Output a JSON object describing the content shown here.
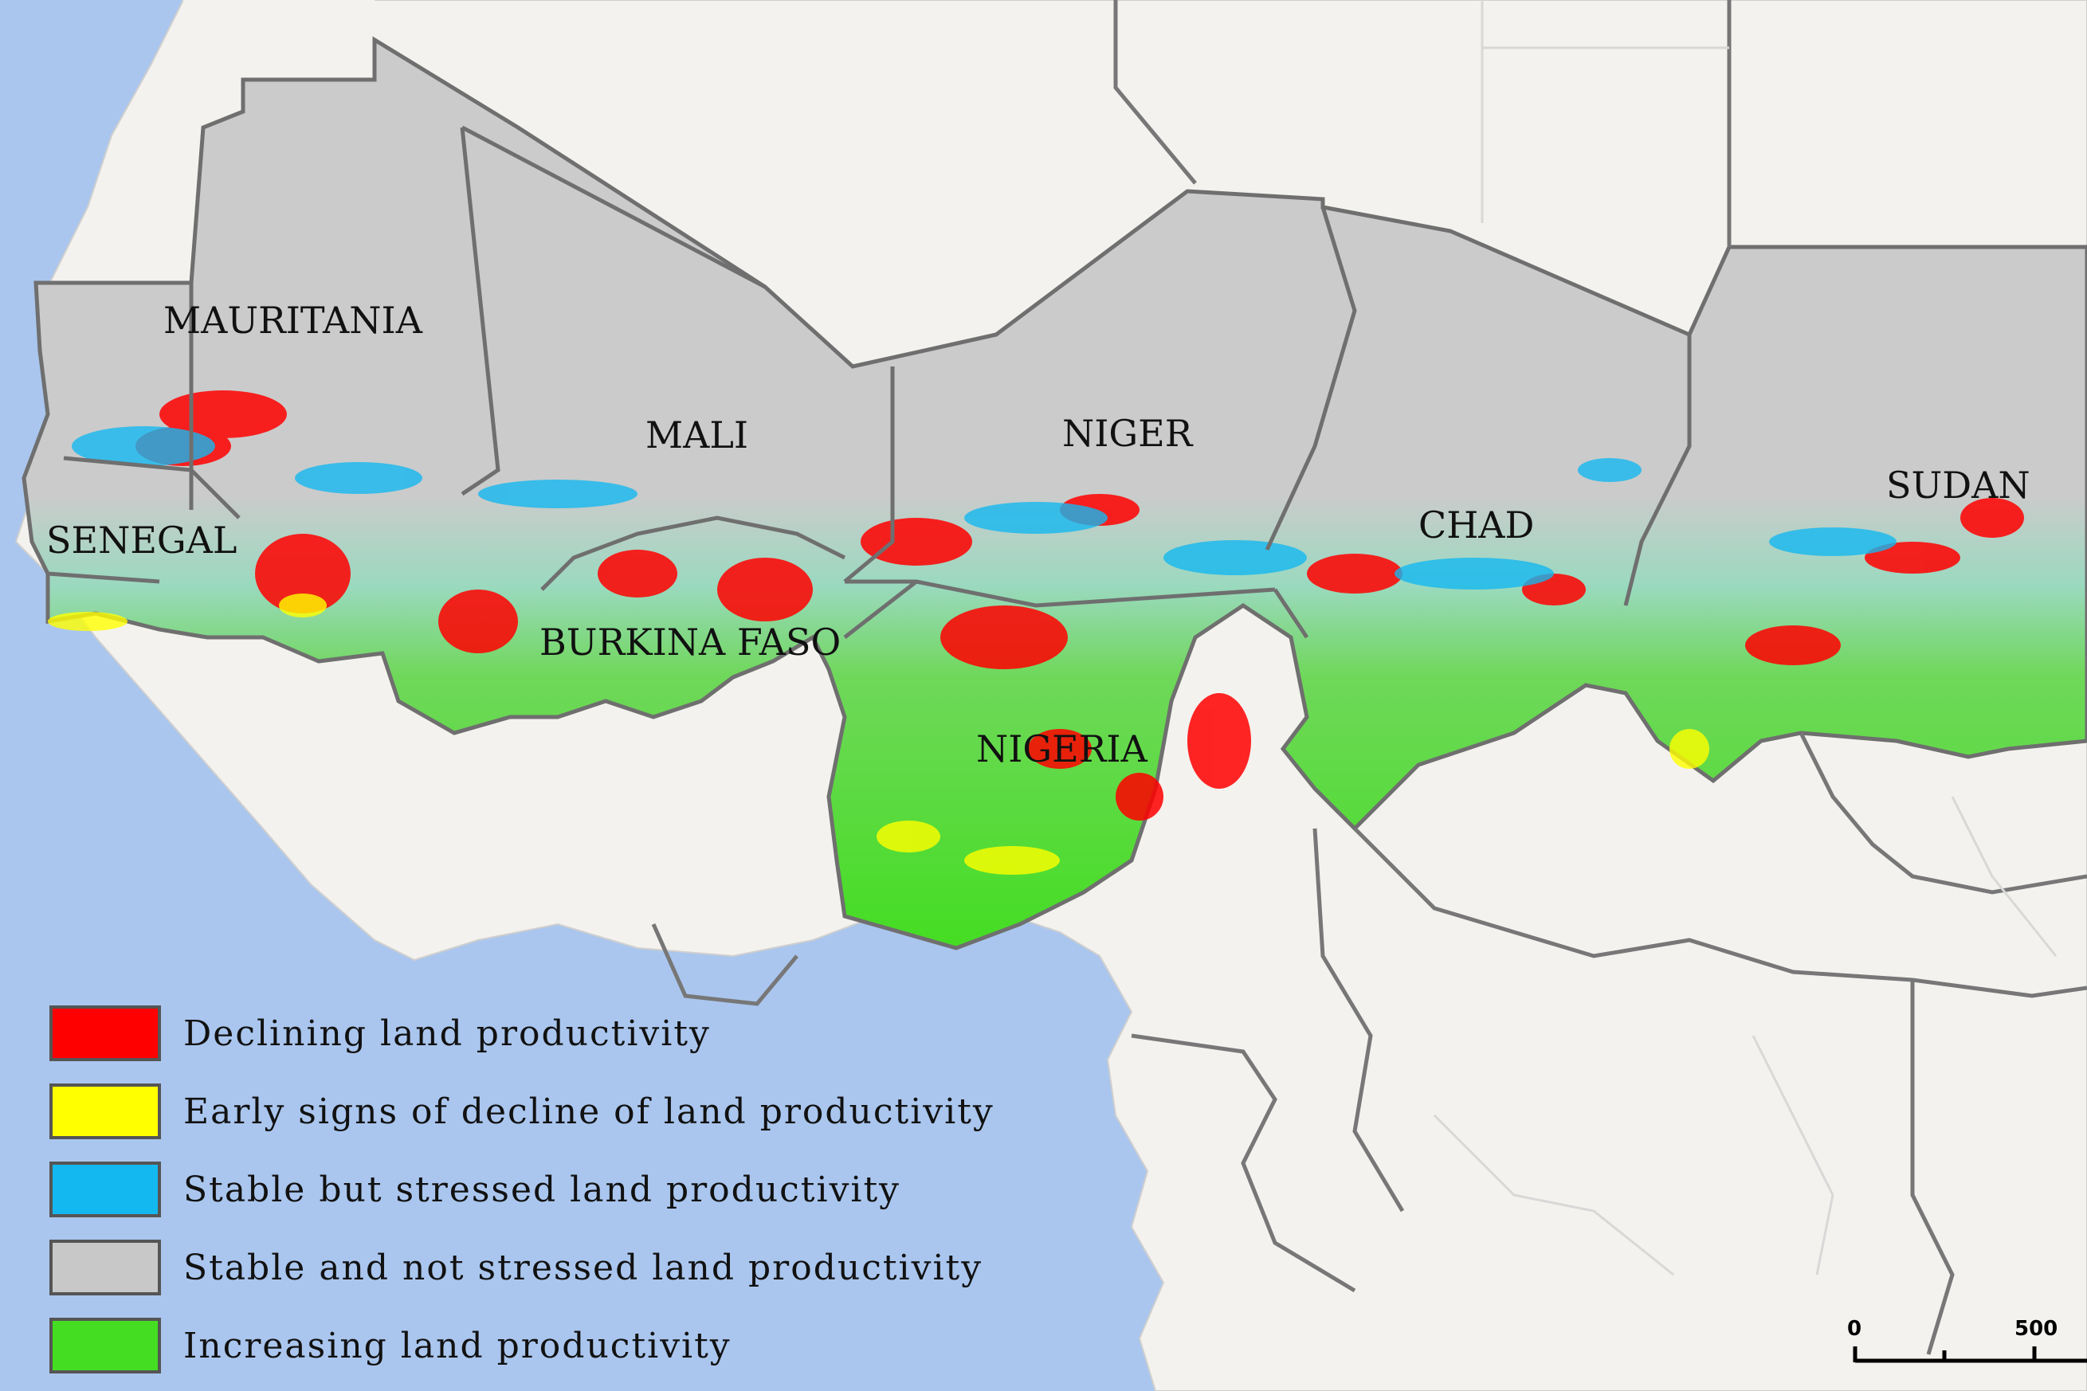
{
  "map": {
    "country_labels": [
      "MAURITANIA",
      "MALI",
      "NIGER",
      "SENEGAL",
      "BURKINA FASO",
      "NIGERIA",
      "CHAD",
      "SUDAN"
    ],
    "colors": {
      "ocean": "#aac6ee",
      "land_other": "#f3f2ee",
      "country_fill": "#cbcbcb",
      "border": "#777777",
      "declining": "#ff0000",
      "early_decline": "#ffff00",
      "stressed": "#14b8f0",
      "stable": "#c8c8c8",
      "increasing": "#44dd22"
    }
  },
  "legend": {
    "items": [
      {
        "label": "Declining land productivity",
        "color": "#ff0000"
      },
      {
        "label": "Early signs of decline of land productivity",
        "color": "#ffff00"
      },
      {
        "label": "Stable but stressed land productivity",
        "color": "#14b8f0"
      },
      {
        "label": "Stable and not stressed land productivity",
        "color": "#c8c8c8"
      },
      {
        "label": "Increasing land productivity",
        "color": "#44dd22"
      }
    ]
  },
  "scale_bar": {
    "tick_start": "0",
    "tick_end": "500"
  }
}
